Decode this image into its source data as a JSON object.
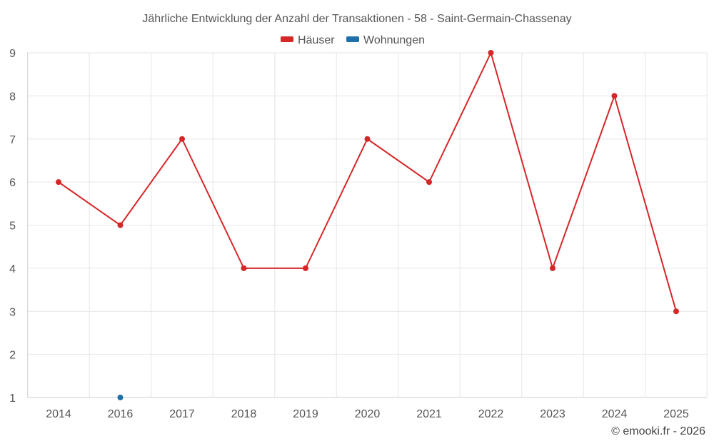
{
  "chart_data": {
    "type": "line",
    "title": "Jährliche Entwicklung der Anzahl der Transaktionen - 58 - Saint-Germain-Chassenay",
    "categories": [
      "2014",
      "2016",
      "2017",
      "2018",
      "2019",
      "2020",
      "2021",
      "2022",
      "2023",
      "2024",
      "2025"
    ],
    "series": [
      {
        "name": "Häuser",
        "color": "#d62728",
        "values": [
          6,
          5,
          7,
          4,
          4,
          7,
          6,
          9,
          4,
          8,
          3
        ]
      },
      {
        "name": "Wohnungen",
        "color": "#1f6fa8",
        "values": [
          null,
          1,
          null,
          null,
          null,
          null,
          null,
          null,
          null,
          null,
          null
        ]
      }
    ],
    "ylim": [
      1,
      9
    ],
    "yticks": [
      1,
      2,
      3,
      4,
      5,
      6,
      7,
      8,
      9
    ],
    "grid": true,
    "legend_position": "top-center"
  },
  "credit": "© emooki.fr - 2026"
}
